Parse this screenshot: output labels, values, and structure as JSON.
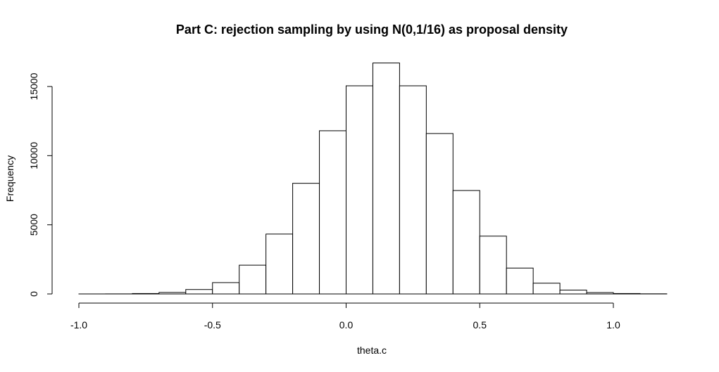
{
  "chart_data": {
    "type": "bar",
    "title": "Part C: rejection sampling by using N(0,1/16) as proposal density",
    "xlabel": "theta.c",
    "ylabel": "Frequency",
    "bin_edges": [
      -1.0,
      -0.9,
      -0.8,
      -0.7,
      -0.6,
      -0.5,
      -0.4,
      -0.3,
      -0.2,
      -0.1,
      0.0,
      0.1,
      0.2,
      0.3,
      0.4,
      0.5,
      0.6,
      0.7,
      0.8,
      0.9,
      1.0,
      1.1,
      1.2
    ],
    "values": [
      1,
      5,
      30,
      110,
      320,
      820,
      2080,
      4330,
      8000,
      11800,
      15050,
      16700,
      15050,
      11600,
      7480,
      4180,
      1870,
      780,
      280,
      100,
      30,
      10
    ],
    "xlim": [
      -1.0,
      1.2
    ],
    "ylim": [
      0,
      17500
    ],
    "xticks": [
      -1.0,
      -0.5,
      0.0,
      0.5,
      1.0
    ],
    "xtick_labels": [
      "-1.0",
      "-0.5",
      "0.0",
      "0.5",
      "1.0"
    ],
    "yticks": [
      0,
      5000,
      10000,
      15000
    ],
    "ytick_labels": [
      "0",
      "5000",
      "10000",
      "15000"
    ],
    "grid": false,
    "legend": "none"
  }
}
